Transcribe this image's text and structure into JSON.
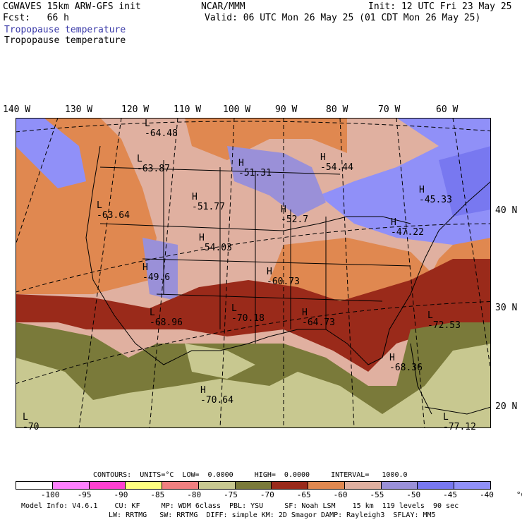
{
  "header": {
    "model": "CGWAVES 15km ARW-GFS init",
    "fcst": "Fcst:   66 h",
    "org": "NCAR/MMM",
    "init": "Init: 12 UTC Fri 23 May 25",
    "valid": "Valid: 06 UTC Mon 26 May 25 (01 CDT Mon 26 May 25)",
    "field1": "Tropopause temperature",
    "field2": "Tropopause temperature"
  },
  "lon_labels": [
    "140 W",
    "130 W",
    "120 W",
    "110 W",
    "100 W",
    "90 W",
    "80 W",
    "70 W",
    "60 W"
  ],
  "lat_labels": [
    "40 N",
    "30 N",
    "20 N"
  ],
  "centers": [
    {
      "type": "L",
      "value": "-64.48"
    },
    {
      "type": "L",
      "value": "-63.87"
    },
    {
      "type": "L",
      "value": "-63.64"
    },
    {
      "type": "H",
      "value": "-51.77"
    },
    {
      "type": "H",
      "value": "-51.31"
    },
    {
      "type": "H",
      "value": "-54.44"
    },
    {
      "type": "H",
      "value": "-45.33"
    },
    {
      "type": "H",
      "value": "-52.7"
    },
    {
      "type": "H",
      "value": "-47.22"
    },
    {
      "type": "H",
      "value": "-54.03"
    },
    {
      "type": "H",
      "value": "-49.6"
    },
    {
      "type": "H",
      "value": "-60.73"
    },
    {
      "type": "L",
      "value": "-68.96"
    },
    {
      "type": "L",
      "value": "-70.18"
    },
    {
      "type": "H",
      "value": "-64.73"
    },
    {
      "type": "L",
      "value": "-72.53"
    },
    {
      "type": "H",
      "value": "-68.36"
    },
    {
      "type": "H",
      "value": "-70.64"
    },
    {
      "type": "L",
      "value": "-70"
    },
    {
      "type": "L",
      "value": "-77.12"
    }
  ],
  "contours": {
    "line": "CONTOURS:  UNITS=°C  LOW=  0.0000     HIGH=  0.0000     INTERVAL=   1000.0"
  },
  "colorbar": {
    "colors": [
      "#ffffff",
      "#ff80ff",
      "#ff40d0",
      "#ffff80",
      "#f08080",
      "#c8c890",
      "#7a7a3a",
      "#9a2a1a",
      "#e08850",
      "#e0b0a0",
      "#9a90d8",
      "#7878f0",
      "#9090f8"
    ],
    "labels": [
      "-100",
      "-95",
      "-90",
      "-85",
      "-80",
      "-75",
      "-70",
      "-65",
      "-60",
      "-55",
      "-50",
      "-45",
      "-40",
      "°C"
    ]
  },
  "footer": {
    "line1": "Model Info: V4.6.1    CU: KF     MP: WDM 6class  PBL: YSU     SF: Noah LSM    15 km  119 levels  90 sec",
    "line2": "LW: RRTMG   SW: RRTMG  DIFF: simple KM: 2D Smagor DAMP: Rayleigh3  SFLAY: MM5"
  }
}
